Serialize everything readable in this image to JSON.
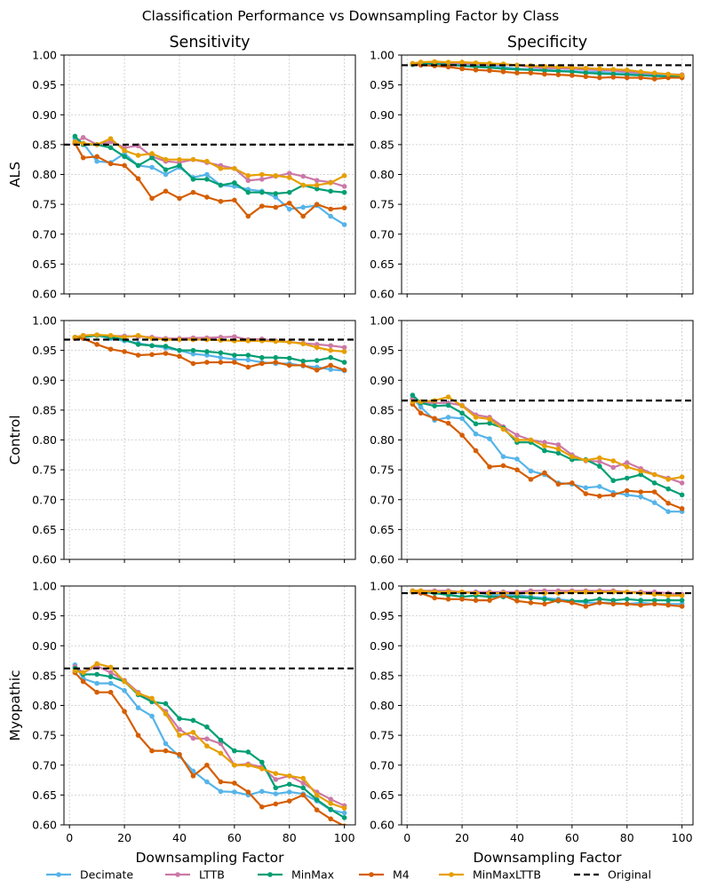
{
  "chart_data": {
    "type": "line",
    "title": "Classification Performance vs Downsampling Factor by Class",
    "column_titles": [
      "Sensitivity",
      "Specificity"
    ],
    "row_labels": [
      "ALS",
      "Control",
      "Myopathic"
    ],
    "xlabel": "Downsampling Factor",
    "xlim": [
      -2,
      104
    ],
    "ylim": [
      0.6,
      1.0
    ],
    "x_ticks": [
      0,
      20,
      40,
      60,
      80,
      100
    ],
    "y_ticks": [
      "0.60",
      "0.65",
      "0.70",
      "0.75",
      "0.80",
      "0.85",
      "0.90",
      "0.95",
      "1.00"
    ],
    "grid": true,
    "legend_position": "bottom-center",
    "x": [
      2,
      5,
      10,
      15,
      20,
      25,
      30,
      35,
      40,
      45,
      50,
      55,
      60,
      65,
      70,
      75,
      80,
      85,
      90,
      95,
      100
    ],
    "series_styles": [
      {
        "name": "Decimate",
        "color": "#56b4e9"
      },
      {
        "name": "LTTB",
        "color": "#cc79a7"
      },
      {
        "name": "MinMax",
        "color": "#009e73"
      },
      {
        "name": "M4",
        "color": "#d55e00"
      },
      {
        "name": "MinMaxLTTB",
        "color": "#e69f00"
      }
    ],
    "original_label": "Original",
    "panels": [
      {
        "row": "ALS",
        "metric": "Sensitivity",
        "original": 0.85,
        "series": [
          {
            "name": "Decimate",
            "values": [
              0.86,
              0.852,
              0.822,
              0.82,
              0.835,
              0.815,
              0.812,
              0.8,
              0.812,
              0.795,
              0.8,
              0.782,
              0.78,
              0.775,
              0.772,
              0.762,
              0.742,
              0.745,
              0.748,
              0.73,
              0.716
            ]
          },
          {
            "name": "LTTB",
            "values": [
              0.852,
              0.862,
              0.85,
              0.855,
              0.845,
              0.848,
              0.83,
              0.822,
              0.82,
              0.825,
              0.82,
              0.815,
              0.81,
              0.79,
              0.792,
              0.797,
              0.802,
              0.797,
              0.79,
              0.787,
              0.78
            ]
          },
          {
            "name": "MinMax",
            "values": [
              0.864,
              0.85,
              0.85,
              0.845,
              0.83,
              0.815,
              0.828,
              0.808,
              0.815,
              0.792,
              0.792,
              0.782,
              0.786,
              0.77,
              0.77,
              0.768,
              0.77,
              0.782,
              0.776,
              0.772,
              0.77
            ]
          },
          {
            "name": "M4",
            "values": [
              0.852,
              0.828,
              0.83,
              0.818,
              0.815,
              0.793,
              0.76,
              0.772,
              0.76,
              0.77,
              0.762,
              0.755,
              0.757,
              0.73,
              0.747,
              0.745,
              0.752,
              0.73,
              0.75,
              0.742,
              0.744
            ]
          },
          {
            "name": "MinMaxLTTB",
            "values": [
              0.855,
              0.852,
              0.85,
              0.86,
              0.84,
              0.832,
              0.835,
              0.825,
              0.825,
              0.825,
              0.822,
              0.81,
              0.81,
              0.798,
              0.8,
              0.798,
              0.795,
              0.782,
              0.782,
              0.786,
              0.798
            ]
          }
        ]
      },
      {
        "row": "ALS",
        "metric": "Specificity",
        "original": 0.983,
        "series": [
          {
            "name": "Decimate",
            "values": [
              0.985,
              0.987,
              0.986,
              0.984,
              0.984,
              0.983,
              0.982,
              0.98,
              0.977,
              0.976,
              0.975,
              0.974,
              0.973,
              0.972,
              0.972,
              0.97,
              0.969,
              0.968,
              0.967,
              0.966,
              0.965
            ]
          },
          {
            "name": "LTTB",
            "values": [
              0.985,
              0.988,
              0.988,
              0.987,
              0.986,
              0.985,
              0.984,
              0.984,
              0.983,
              0.98,
              0.978,
              0.978,
              0.977,
              0.976,
              0.975,
              0.974,
              0.972,
              0.97,
              0.969,
              0.968,
              0.967
            ]
          },
          {
            "name": "MinMax",
            "values": [
              0.984,
              0.985,
              0.985,
              0.984,
              0.982,
              0.98,
              0.979,
              0.977,
              0.976,
              0.975,
              0.974,
              0.973,
              0.972,
              0.97,
              0.969,
              0.968,
              0.967,
              0.966,
              0.965,
              0.964,
              0.964
            ]
          },
          {
            "name": "M4",
            "values": [
              0.985,
              0.983,
              0.982,
              0.98,
              0.977,
              0.975,
              0.974,
              0.972,
              0.97,
              0.97,
              0.968,
              0.967,
              0.966,
              0.964,
              0.962,
              0.963,
              0.962,
              0.962,
              0.96,
              0.962,
              0.962
            ]
          },
          {
            "name": "MinMaxLTTB",
            "values": [
              0.986,
              0.988,
              0.989,
              0.988,
              0.988,
              0.987,
              0.986,
              0.985,
              0.983,
              0.982,
              0.981,
              0.98,
              0.979,
              0.978,
              0.977,
              0.976,
              0.975,
              0.972,
              0.97,
              0.968,
              0.966
            ]
          }
        ]
      },
      {
        "row": "Control",
        "metric": "Sensitivity",
        "original": 0.968,
        "series": [
          {
            "name": "Decimate",
            "values": [
              0.972,
              0.972,
              0.975,
              0.97,
              0.966,
              0.962,
              0.958,
              0.954,
              0.95,
              0.944,
              0.942,
              0.938,
              0.935,
              0.934,
              0.93,
              0.928,
              0.928,
              0.924,
              0.922,
              0.918,
              0.916
            ]
          },
          {
            "name": "LTTB",
            "values": [
              0.972,
              0.975,
              0.976,
              0.974,
              0.974,
              0.973,
              0.972,
              0.97,
              0.97,
              0.971,
              0.971,
              0.972,
              0.973,
              0.968,
              0.969,
              0.966,
              0.964,
              0.962,
              0.96,
              0.958,
              0.955
            ]
          },
          {
            "name": "MinMax",
            "values": [
              0.972,
              0.972,
              0.975,
              0.972,
              0.968,
              0.96,
              0.958,
              0.957,
              0.95,
              0.95,
              0.948,
              0.946,
              0.942,
              0.942,
              0.938,
              0.938,
              0.937,
              0.932,
              0.933,
              0.938,
              0.93
            ]
          },
          {
            "name": "M4",
            "values": [
              0.97,
              0.97,
              0.96,
              0.952,
              0.948,
              0.942,
              0.943,
              0.945,
              0.94,
              0.928,
              0.93,
              0.93,
              0.93,
              0.922,
              0.928,
              0.93,
              0.925,
              0.925,
              0.917,
              0.925,
              0.917
            ]
          },
          {
            "name": "MinMaxLTTB",
            "values": [
              0.972,
              0.975,
              0.976,
              0.975,
              0.972,
              0.975,
              0.97,
              0.968,
              0.968,
              0.968,
              0.968,
              0.967,
              0.966,
              0.966,
              0.966,
              0.965,
              0.964,
              0.961,
              0.955,
              0.95,
              0.948
            ]
          }
        ]
      },
      {
        "row": "Control",
        "metric": "Specificity",
        "original": 0.866,
        "series": [
          {
            "name": "Decimate",
            "values": [
              0.87,
              0.855,
              0.833,
              0.838,
              0.836,
              0.81,
              0.802,
              0.772,
              0.768,
              0.748,
              0.742,
              0.728,
              0.726,
              0.72,
              0.722,
              0.712,
              0.708,
              0.705,
              0.695,
              0.68,
              0.68
            ]
          },
          {
            "name": "LTTB",
            "values": [
              0.868,
              0.862,
              0.862,
              0.862,
              0.858,
              0.842,
              0.838,
              0.822,
              0.808,
              0.8,
              0.796,
              0.792,
              0.775,
              0.765,
              0.764,
              0.754,
              0.762,
              0.752,
              0.742,
              0.736,
              0.728
            ]
          },
          {
            "name": "MinMax",
            "values": [
              0.875,
              0.862,
              0.857,
              0.858,
              0.845,
              0.827,
              0.828,
              0.82,
              0.796,
              0.796,
              0.782,
              0.778,
              0.767,
              0.767,
              0.756,
              0.732,
              0.736,
              0.742,
              0.728,
              0.718,
              0.708
            ]
          },
          {
            "name": "M4",
            "values": [
              0.86,
              0.845,
              0.836,
              0.828,
              0.808,
              0.782,
              0.755,
              0.757,
              0.75,
              0.734,
              0.745,
              0.726,
              0.728,
              0.71,
              0.706,
              0.708,
              0.715,
              0.713,
              0.713,
              0.694,
              0.685
            ]
          },
          {
            "name": "MinMaxLTTB",
            "values": [
              0.864,
              0.864,
              0.866,
              0.872,
              0.857,
              0.838,
              0.835,
              0.818,
              0.8,
              0.8,
              0.79,
              0.785,
              0.772,
              0.766,
              0.77,
              0.765,
              0.755,
              0.748,
              0.742,
              0.734,
              0.738
            ]
          }
        ]
      },
      {
        "row": "Myopathic",
        "metric": "Sensitivity",
        "original": 0.862,
        "series": [
          {
            "name": "Decimate",
            "values": [
              0.868,
              0.845,
              0.837,
              0.837,
              0.825,
              0.796,
              0.782,
              0.736,
              0.715,
              0.69,
              0.672,
              0.656,
              0.655,
              0.65,
              0.656,
              0.652,
              0.655,
              0.652,
              0.64,
              0.625,
              0.62
            ]
          },
          {
            "name": "LTTB",
            "values": [
              0.865,
              0.855,
              0.866,
              0.855,
              0.842,
              0.822,
              0.808,
              0.79,
              0.76,
              0.745,
              0.744,
              0.736,
              0.7,
              0.702,
              0.697,
              0.676,
              0.682,
              0.67,
              0.655,
              0.643,
              0.632
            ]
          },
          {
            "name": "MinMax",
            "values": [
              0.862,
              0.852,
              0.852,
              0.848,
              0.84,
              0.818,
              0.806,
              0.803,
              0.778,
              0.775,
              0.764,
              0.742,
              0.724,
              0.722,
              0.705,
              0.662,
              0.668,
              0.662,
              0.642,
              0.626,
              0.612
            ]
          },
          {
            "name": "M4",
            "values": [
              0.855,
              0.84,
              0.822,
              0.822,
              0.79,
              0.75,
              0.724,
              0.724,
              0.718,
              0.682,
              0.7,
              0.672,
              0.67,
              0.655,
              0.63,
              0.635,
              0.64,
              0.65,
              0.625,
              0.61,
              0.598
            ]
          },
          {
            "name": "MinMaxLTTB",
            "values": [
              0.858,
              0.855,
              0.87,
              0.864,
              0.84,
              0.82,
              0.812,
              0.786,
              0.75,
              0.755,
              0.732,
              0.72,
              0.7,
              0.7,
              0.694,
              0.686,
              0.682,
              0.678,
              0.65,
              0.636,
              0.628
            ]
          }
        ]
      },
      {
        "row": "Myopathic",
        "metric": "Specificity",
        "original": 0.988,
        "series": [
          {
            "name": "Decimate",
            "values": [
              0.992,
              0.99,
              0.988,
              0.988,
              0.988,
              0.99,
              0.985,
              0.985,
              0.985,
              0.982,
              0.98,
              0.978,
              0.975,
              0.972,
              0.972,
              0.972,
              0.97,
              0.972,
              0.97,
              0.97,
              0.97
            ]
          },
          {
            "name": "LTTB",
            "values": [
              0.992,
              0.992,
              0.992,
              0.992,
              0.99,
              0.99,
              0.99,
              0.99,
              0.99,
              0.992,
              0.992,
              0.992,
              0.992,
              0.992,
              0.992,
              0.992,
              0.99,
              0.99,
              0.99,
              0.988,
              0.986
            ]
          },
          {
            "name": "MinMax",
            "values": [
              0.99,
              0.99,
              0.988,
              0.985,
              0.982,
              0.984,
              0.982,
              0.982,
              0.982,
              0.98,
              0.978,
              0.975,
              0.975,
              0.975,
              0.978,
              0.976,
              0.978,
              0.976,
              0.976,
              0.976,
              0.976
            ]
          },
          {
            "name": "M4",
            "values": [
              0.99,
              0.988,
              0.98,
              0.978,
              0.978,
              0.976,
              0.976,
              0.984,
              0.975,
              0.972,
              0.97,
              0.976,
              0.972,
              0.966,
              0.972,
              0.97,
              0.97,
              0.968,
              0.97,
              0.968,
              0.966
            ]
          },
          {
            "name": "MinMaxLTTB",
            "values": [
              0.992,
              0.992,
              0.99,
              0.99,
              0.99,
              0.988,
              0.988,
              0.988,
              0.988,
              0.988,
              0.988,
              0.988,
              0.99,
              0.99,
              0.99,
              0.99,
              0.99,
              0.988,
              0.986,
              0.984,
              0.984
            ]
          }
        ]
      }
    ]
  }
}
